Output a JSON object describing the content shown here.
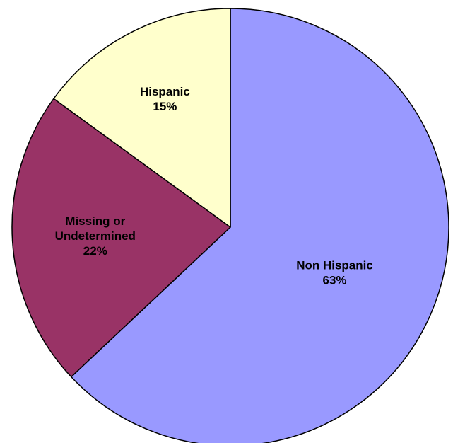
{
  "chart_data": {
    "type": "pie",
    "title": "",
    "start_angle_deg": 0,
    "direction": "clockwise",
    "slices": [
      {
        "name": "Non Hispanic",
        "label_lines": [
          "Non Hispanic"
        ],
        "value": 63,
        "value_label": "63%",
        "color": "#9999FF",
        "label_color": "#000000"
      },
      {
        "name": "Missing or Undetermined",
        "label_lines": [
          "Missing or",
          "Undetermined"
        ],
        "value": 22,
        "value_label": "22%",
        "color": "#993366",
        "label_color": "#FFFFFF"
      },
      {
        "name": "Hispanic",
        "label_lines": [
          "Hispanic"
        ],
        "value": 15,
        "value_label": "15%",
        "color": "#FFFFCC",
        "label_color": "#000000"
      }
    ]
  }
}
